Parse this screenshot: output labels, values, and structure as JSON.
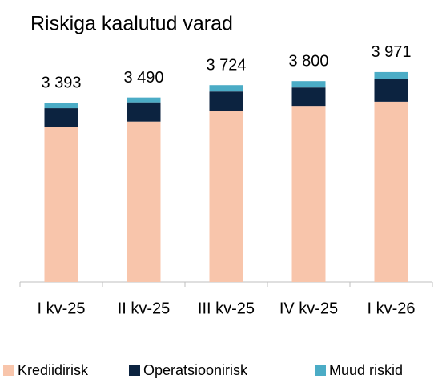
{
  "chart_data": {
    "type": "stacked_bar",
    "title": "Riskiga kaalutud varad",
    "categories": [
      "I kv-25",
      "II kv-25",
      "III kv-25",
      "IV kv-25",
      "I kv-26"
    ],
    "series": [
      {
        "name": "Krediidirisk",
        "color": "#f8c5ab",
        "values": [
          2939,
          3035,
          3239,
          3331,
          3411
        ]
      },
      {
        "name": "Operatsioonirisk",
        "color": "#0c2340",
        "values": [
          348,
          364,
          364,
          348,
          424
        ]
      },
      {
        "name": "Muud riskid",
        "color": "#4bacc6",
        "values": [
          106,
          91,
          121,
          121,
          136
        ]
      }
    ],
    "totals": [
      {
        "value": 3393,
        "label": "3 393"
      },
      {
        "value": 3490,
        "label": "3 490"
      },
      {
        "value": 3724,
        "label": "3 724"
      },
      {
        "value": 3800,
        "label": "3 800"
      },
      {
        "value": 3971,
        "label": "3 971"
      }
    ],
    "ylim": [
      0,
      4500
    ]
  }
}
